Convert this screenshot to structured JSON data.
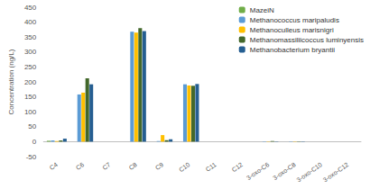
{
  "chart_data": {
    "type": "bar",
    "y_label": "Concentration (ng/L)",
    "categories": [
      "C4",
      "C6",
      "C7",
      "C8",
      "C9",
      "C10",
      "C11",
      "C12",
      "3-oxo-C6",
      "3-oxo-C8",
      "3-oxo-C10",
      "3-oxo-C12"
    ],
    "series": [
      {
        "name": "MazeiN",
        "color": "#70ad47",
        "values": [
          3,
          0,
          0,
          0,
          0,
          0,
          0,
          0,
          0,
          0,
          0,
          0
        ]
      },
      {
        "name": "Methanococcus maripaludis",
        "color": "#5b9bd5",
        "values": [
          4,
          158,
          0,
          368,
          2,
          192,
          0,
          0,
          1,
          1,
          0,
          0
        ]
      },
      {
        "name": "Methanoculleus marisnigri",
        "color": "#ffc000",
        "values": [
          2,
          164,
          0,
          365,
          22,
          188,
          0,
          0,
          1,
          1,
          0,
          0
        ]
      },
      {
        "name": "Methanomassiliicoccus luminyensis",
        "color": "#43682b",
        "values": [
          4,
          212,
          0,
          380,
          5,
          187,
          0,
          0,
          2,
          1,
          0,
          0
        ]
      },
      {
        "name": "Methanobacterium bryantii",
        "color": "#255e91",
        "values": [
          10,
          192,
          0,
          370,
          8,
          193,
          0,
          0,
          1,
          1,
          0,
          0
        ]
      }
    ],
    "ylim": [
      -50,
      450
    ],
    "yticks": [
      -50,
      0,
      50,
      100,
      150,
      200,
      250,
      300,
      350,
      400,
      450
    ],
    "grid": false,
    "legend": "top-right"
  }
}
